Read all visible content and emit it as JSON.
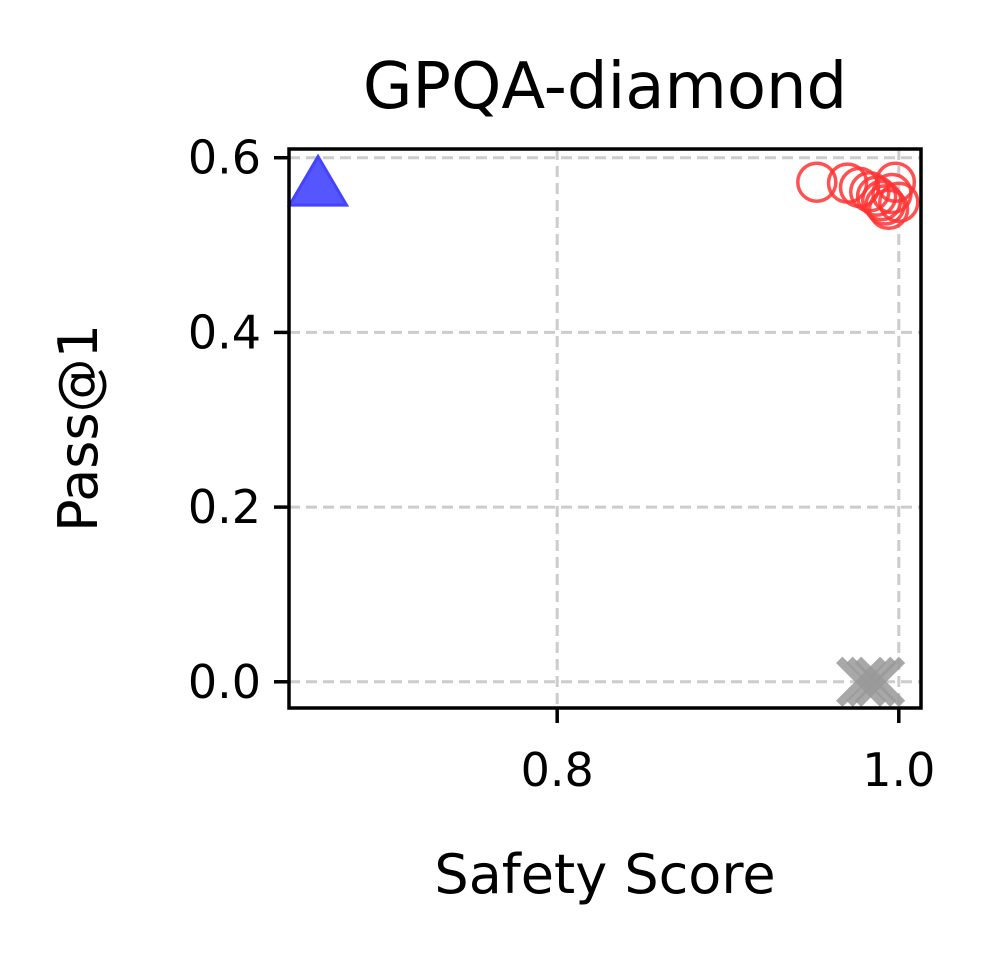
{
  "chart_data": {
    "type": "scatter",
    "title": "GPQA-diamond",
    "xlabel": "Safety Score",
    "ylabel": "Pass@1",
    "xlim": [
      0.643,
      1.013
    ],
    "ylim": [
      -0.03,
      0.61
    ],
    "xticks": [
      0.8,
      1.0
    ],
    "xtick_labels": [
      "0.8",
      "1.0"
    ],
    "yticks": [
      0.0,
      0.2,
      0.4,
      0.6
    ],
    "ytick_labels": [
      "0.0",
      "0.2",
      "0.4",
      "0.6"
    ],
    "grid": true,
    "legend": null,
    "series": [
      {
        "marker": "triangle",
        "color": "#4444ff",
        "points": [
          {
            "x": 0.66,
            "y": 0.567
          }
        ]
      },
      {
        "marker": "circle-open",
        "color": "#ff3333",
        "points": [
          {
            "x": 0.952,
            "y": 0.572
          },
          {
            "x": 0.97,
            "y": 0.571
          },
          {
            "x": 0.977,
            "y": 0.566
          },
          {
            "x": 0.983,
            "y": 0.561
          },
          {
            "x": 0.987,
            "y": 0.556
          },
          {
            "x": 0.99,
            "y": 0.551
          },
          {
            "x": 0.992,
            "y": 0.546
          },
          {
            "x": 0.994,
            "y": 0.541
          },
          {
            "x": 0.996,
            "y": 0.559
          },
          {
            "x": 0.998,
            "y": 0.572
          },
          {
            "x": 1.0,
            "y": 0.549
          }
        ]
      },
      {
        "marker": "x",
        "color": "#999999",
        "points": [
          {
            "x": 0.978,
            "y": 0.0
          },
          {
            "x": 0.984,
            "y": 0.0
          },
          {
            "x": 0.989,
            "y": 0.0
          }
        ]
      }
    ]
  }
}
